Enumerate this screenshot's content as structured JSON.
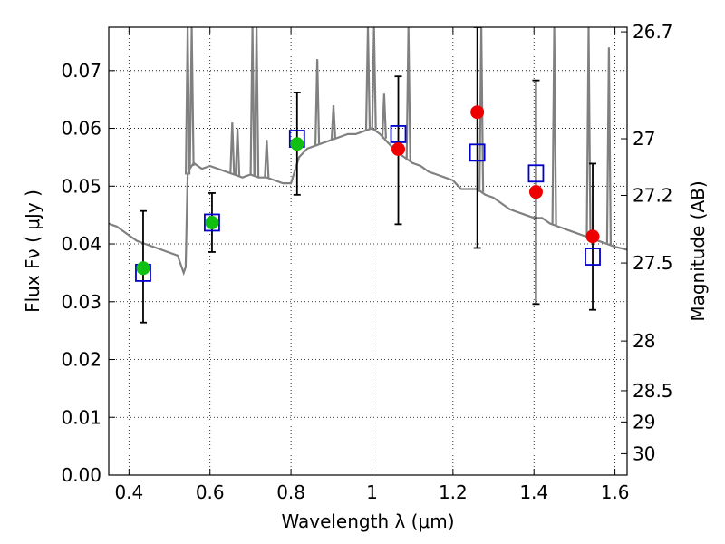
{
  "chart_data": {
    "type": "scatter",
    "xlabel": "Wavelength  λ (μm)",
    "ylabel": "Flux  Fν  ( μJy )",
    "y2label": "Magnitude (AB)",
    "xlim": [
      0.35,
      1.63
    ],
    "ylim": [
      0.0,
      0.0775
    ],
    "xticks": [
      0.4,
      0.6,
      0.8,
      1.0,
      1.2,
      1.4,
      1.6
    ],
    "xtick_labels": [
      "0.4",
      "0.6",
      "0.8",
      "1",
      "1.2",
      "1.4",
      "1.6"
    ],
    "yticks": [
      0.0,
      0.01,
      0.02,
      0.03,
      0.04,
      0.05,
      0.06,
      0.07
    ],
    "ytick_labels": [
      "0.00",
      "0.01",
      "0.02",
      "0.03",
      "0.04",
      "0.05",
      "0.06",
      "0.07"
    ],
    "y2ticks": [
      {
        "label": "26.7",
        "flux": 0.0767
      },
      {
        "label": "27",
        "flux": 0.0582
      },
      {
        "label": "27.2",
        "flux": 0.0484
      },
      {
        "label": "27.5",
        "flux": 0.0367
      },
      {
        "label": "28",
        "flux": 0.0232
      },
      {
        "label": "28.5",
        "flux": 0.0146
      },
      {
        "label": "29",
        "flux": 0.0092
      },
      {
        "label": "30",
        "flux": 0.0037
      }
    ],
    "grid": true,
    "colors": {
      "model": "#808080",
      "observed_green": "#10c010",
      "observed_red": "#ee0000",
      "model_box": "#0000cc",
      "errorbar": "#000000"
    },
    "series": [
      {
        "style": "model-spectrum-line",
        "x": [
          0.35,
          0.37,
          0.38,
          0.4,
          0.42,
          0.44,
          0.46,
          0.48,
          0.5,
          0.52,
          0.535,
          0.54,
          0.545,
          0.55,
          0.56,
          0.58,
          0.6,
          0.62,
          0.64,
          0.66,
          0.68,
          0.7,
          0.72,
          0.74,
          0.76,
          0.78,
          0.8,
          0.82,
          0.84,
          0.86,
          0.88,
          0.9,
          0.92,
          0.94,
          0.96,
          0.98,
          1.0,
          1.02,
          1.04,
          1.06,
          1.08,
          1.1,
          1.12,
          1.14,
          1.16,
          1.18,
          1.2,
          1.22,
          1.24,
          1.26,
          1.28,
          1.3,
          1.32,
          1.34,
          1.36,
          1.38,
          1.4,
          1.42,
          1.44,
          1.46,
          1.48,
          1.5,
          1.52,
          1.54,
          1.56,
          1.58,
          1.6,
          1.63
        ],
        "y": [
          0.0435,
          0.043,
          0.0425,
          0.0415,
          0.0405,
          0.04,
          0.0395,
          0.039,
          0.0385,
          0.038,
          0.035,
          0.036,
          0.052,
          0.053,
          0.054,
          0.053,
          0.0535,
          0.053,
          0.0525,
          0.052,
          0.0515,
          0.052,
          0.0515,
          0.0515,
          0.051,
          0.0505,
          0.0505,
          0.055,
          0.0565,
          0.057,
          0.0575,
          0.058,
          0.0585,
          0.059,
          0.059,
          0.0595,
          0.06,
          0.059,
          0.0575,
          0.056,
          0.055,
          0.054,
          0.0535,
          0.0525,
          0.052,
          0.0515,
          0.051,
          0.0495,
          0.0495,
          0.0495,
          0.0485,
          0.048,
          0.047,
          0.046,
          0.0455,
          0.045,
          0.0445,
          0.0445,
          0.0435,
          0.043,
          0.0425,
          0.042,
          0.0415,
          0.041,
          0.0405,
          0.04,
          0.0395,
          0.039
        ]
      },
      {
        "style": "model-box-markers",
        "x": [
          0.435,
          0.605,
          0.815,
          1.065,
          1.26,
          1.405,
          1.545
        ],
        "y": [
          0.035,
          0.0437,
          0.0582,
          0.059,
          0.0558,
          0.0522,
          0.0378
        ]
      },
      {
        "style": "observed-green-points",
        "x": [
          0.435,
          0.605,
          0.815
        ],
        "y": [
          0.0358,
          0.0437,
          0.0573
        ]
      },
      {
        "style": "observed-red-points",
        "x": [
          1.065,
          1.26,
          1.405,
          1.545
        ],
        "y": [
          0.0564,
          0.0628,
          0.049,
          0.0413
        ]
      }
    ],
    "errorbars": [
      {
        "x": 0.435,
        "y": 0.0358,
        "low": 0.0264,
        "high": 0.0457
      },
      {
        "x": 0.605,
        "y": 0.0437,
        "low": 0.0386,
        "high": 0.0488
      },
      {
        "x": 0.815,
        "y": 0.0573,
        "low": 0.0485,
        "high": 0.0662
      },
      {
        "x": 1.065,
        "y": 0.0564,
        "low": 0.0434,
        "high": 0.069
      },
      {
        "x": 1.26,
        "y": 0.0628,
        "low": 0.0393,
        "high": 0.0775
      },
      {
        "x": 1.405,
        "y": 0.049,
        "low": 0.0296,
        "high": 0.0683
      },
      {
        "x": 1.545,
        "y": 0.0413,
        "low": 0.0286,
        "high": 0.0539
      }
    ],
    "spikes": [
      {
        "x": 0.545,
        "top": 0.0775
      },
      {
        "x": 0.555,
        "top": 0.0775
      },
      {
        "x": 0.655,
        "top": 0.061
      },
      {
        "x": 0.668,
        "top": 0.06
      },
      {
        "x": 0.705,
        "top": 0.0775
      },
      {
        "x": 0.715,
        "top": 0.0775
      },
      {
        "x": 0.74,
        "top": 0.058
      },
      {
        "x": 0.865,
        "top": 0.072
      },
      {
        "x": 0.905,
        "top": 0.064
      },
      {
        "x": 0.99,
        "top": 0.0775
      },
      {
        "x": 1.005,
        "top": 0.0775
      },
      {
        "x": 1.03,
        "top": 0.066
      },
      {
        "x": 1.09,
        "top": 0.0775
      },
      {
        "x": 1.27,
        "top": 0.0775
      },
      {
        "x": 1.45,
        "top": 0.0775
      },
      {
        "x": 1.535,
        "top": 0.0775
      },
      {
        "x": 1.585,
        "top": 0.074
      }
    ]
  }
}
